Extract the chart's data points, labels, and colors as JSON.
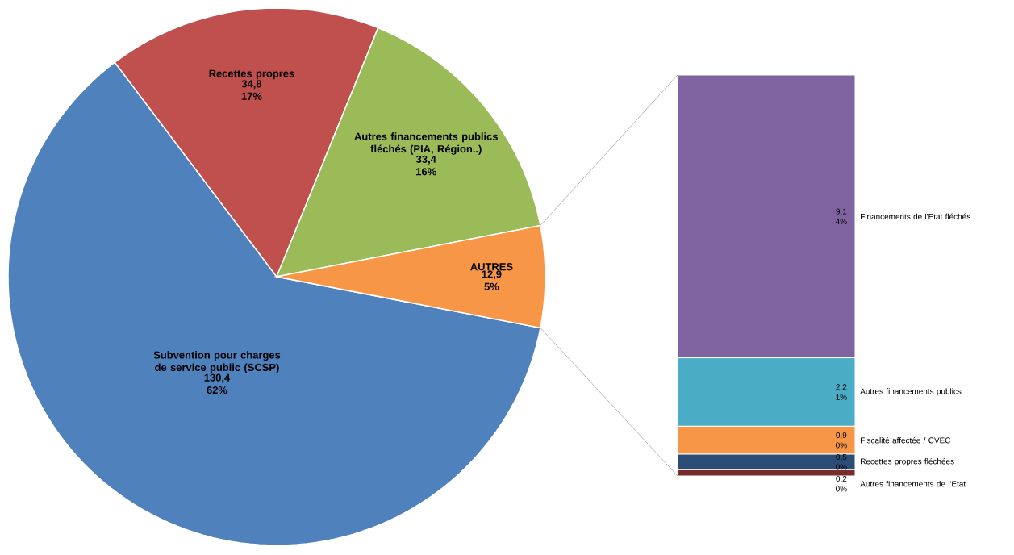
{
  "chart_data": [
    {
      "type": "pie",
      "categories": [
        "Subvention pour charges de service public (SCSP)",
        "Recettes propres",
        "Autres financements publics fléchés (PIA, Région..)",
        "AUTRES"
      ],
      "values": [
        130.4,
        34.8,
        33.4,
        12.9
      ],
      "colors": [
        "#4f81bd",
        "#c0504d",
        "#9bbb59",
        "#f79646"
      ],
      "value_labels": [
        "130,4 62%",
        "34,8 17%",
        "33,4 16%",
        "12,9 5%"
      ]
    },
    {
      "type": "bar",
      "stacked": true,
      "categories": [
        null
      ],
      "series": [
        {
          "name": "Autres financements de l'Etat",
          "color": "#772c2a",
          "values": [
            0.2
          ],
          "value_labels": [
            "0,2 0%"
          ]
        },
        {
          "name": "Recettes propres fléchées",
          "color": "#2c4d75",
          "values": [
            0.5
          ],
          "value_labels": [
            "0,5 0%"
          ]
        },
        {
          "name": "Fiscalité affectée / CVEC",
          "color": "#f79646",
          "values": [
            0.9
          ],
          "value_labels": [
            "0,9 0%"
          ]
        },
        {
          "name": "Autres financements publics",
          "color": "#4bacc6",
          "values": [
            2.2
          ],
          "value_labels": [
            "2,2 1%"
          ]
        },
        {
          "name": "Financements de l'Etat fléchés",
          "color": "#8064a2",
          "values": [
            9.1
          ],
          "value_labels": [
            "9,1 4%"
          ]
        }
      ]
    }
  ]
}
